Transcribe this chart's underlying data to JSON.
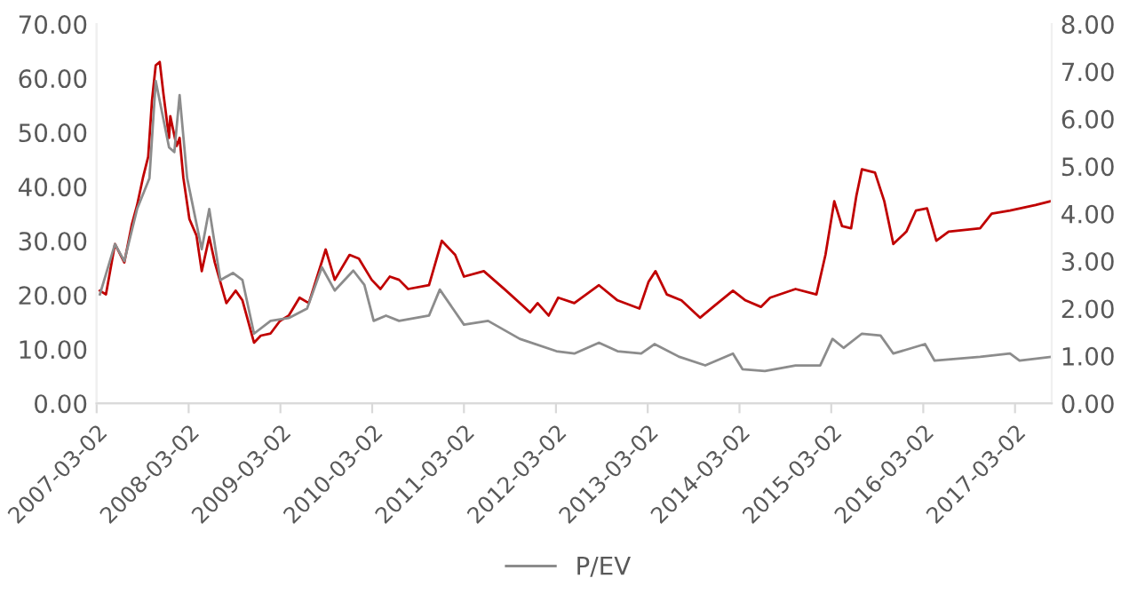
{
  "chart_data": {
    "type": "line",
    "legend": "bottom",
    "grid": false,
    "marker": "none",
    "line_style": "solid",
    "xlim": [
      "2007-03-02",
      "2017-07-26"
    ],
    "xticks": [
      {
        "value": "2007-03-02",
        "label": "2007-03-02"
      },
      {
        "value": "2008-03-02",
        "label": "2008-03-02"
      },
      {
        "value": "2009-03-02",
        "label": "2009-03-02"
      },
      {
        "value": "2010-03-02",
        "label": "2010-03-02"
      },
      {
        "value": "2011-03-02",
        "label": "2011-03-02"
      },
      {
        "value": "2012-03-02",
        "label": "2012-03-02"
      },
      {
        "value": "2013-03-02",
        "label": "2013-03-02"
      },
      {
        "value": "2014-03-02",
        "label": "2014-03-02"
      },
      {
        "value": "2015-03-02",
        "label": "2015-03-02"
      },
      {
        "value": "2016-03-02",
        "label": "2016-03-02"
      },
      {
        "value": "2017-03-02",
        "label": "2017-03-02"
      }
    ],
    "ylim": [
      0,
      70
    ],
    "yticks": [
      {
        "value": 0,
        "label": "0.00"
      },
      {
        "value": 10,
        "label": "10.00"
      },
      {
        "value": 20,
        "label": "20.00"
      },
      {
        "value": 30,
        "label": "30.00"
      },
      {
        "value": 40,
        "label": "40.00"
      },
      {
        "value": 50,
        "label": "50.00"
      },
      {
        "value": 60,
        "label": "60.00"
      },
      {
        "value": 70,
        "label": "70.00"
      }
    ],
    "y2lim": [
      0,
      8
    ],
    "y2ticks": [
      {
        "value": 0,
        "label": "0.00"
      },
      {
        "value": 1,
        "label": "1.00"
      },
      {
        "value": 2,
        "label": "2.00"
      },
      {
        "value": 3,
        "label": "3.00"
      },
      {
        "value": 4,
        "label": "4.00"
      },
      {
        "value": 5,
        "label": "5.00"
      },
      {
        "value": 6,
        "label": "6.00"
      },
      {
        "value": 7,
        "label": "7.00"
      },
      {
        "value": 8,
        "label": "8.00"
      }
    ],
    "series": [
      {
        "color": "#c00000",
        "x": [
          "2007-03-15",
          "2007-04-08",
          "2007-05-14",
          "2007-06-20",
          "2007-07-20",
          "2007-08-10",
          "2007-09-02",
          "2007-09-23",
          "2007-10-08",
          "2007-10-23",
          "2007-11-08",
          "2007-11-23",
          "2007-12-15",
          "2007-12-20",
          "2008-01-14",
          "2008-01-26",
          "2008-02-10",
          "2008-03-05",
          "2008-04-02",
          "2008-04-23",
          "2008-05-23",
          "2008-06-14",
          "2008-07-30",
          "2008-09-05",
          "2008-10-02",
          "2008-11-17",
          "2008-12-14",
          "2009-01-22",
          "2009-02-28",
          "2009-04-04",
          "2009-05-17",
          "2009-06-23",
          "2009-08-29",
          "2009-10-04",
          "2009-12-02",
          "2010-01-08",
          "2010-02-28",
          "2010-04-04",
          "2010-05-11",
          "2010-06-17",
          "2010-07-23",
          "2010-10-14",
          "2010-12-04",
          "2011-01-26",
          "2011-03-02",
          "2011-05-20",
          "2011-08-17",
          "2011-11-20",
          "2011-12-20",
          "2012-02-02",
          "2012-03-11",
          "2012-05-14",
          "2012-08-20",
          "2012-11-02",
          "2013-01-28",
          "2013-03-05",
          "2013-04-02",
          "2013-05-17",
          "2013-07-14",
          "2013-09-26",
          "2013-11-17",
          "2014-02-04",
          "2014-03-26",
          "2014-05-26",
          "2014-07-02",
          "2014-10-11",
          "2015-01-02",
          "2015-02-07",
          "2015-03-14",
          "2015-04-14",
          "2015-05-20",
          "2015-06-10",
          "2015-07-02",
          "2015-08-23",
          "2015-09-29",
          "2015-11-04",
          "2015-12-26",
          "2016-02-02",
          "2016-03-17",
          "2016-04-23",
          "2016-06-11",
          "2016-10-14",
          "2016-11-29",
          "2017-02-10",
          "2017-05-23",
          "2017-07-20"
        ],
        "values": [
          20.8,
          20.1,
          29.4,
          26,
          33,
          36.6,
          41.6,
          45.5,
          55.8,
          62.4,
          63,
          57,
          49,
          53,
          47.5,
          49,
          41.6,
          34,
          31,
          24.4,
          30.7,
          26,
          18.5,
          20.8,
          19,
          11.2,
          12.5,
          12.9,
          15.2,
          16.2,
          19.5,
          18.5,
          28.4,
          22.8,
          27.4,
          26.7,
          22.8,
          21.1,
          23.4,
          22.8,
          21.1,
          21.8,
          30,
          27.4,
          23.4,
          24.4,
          20.8,
          16.8,
          18.5,
          16.2,
          19.5,
          18.5,
          21.8,
          19,
          17.5,
          22.4,
          24.4,
          20.1,
          19,
          15.8,
          17.8,
          20.8,
          19,
          17.8,
          19.5,
          21.1,
          20.1,
          27.4,
          37.3,
          32.7,
          32.3,
          38.3,
          43.2,
          42.6,
          37.3,
          29.4,
          31.7,
          35.6,
          36,
          30,
          31.7,
          32.3,
          35,
          35.6,
          36.6,
          37.3
        ]
      },
      {
        "name": "P/EV",
        "color": "#8c8c8c",
        "axis": "y2",
        "x": [
          "2007-03-15",
          "2007-05-14",
          "2007-06-20",
          "2007-08-10",
          "2007-09-28",
          "2007-10-23",
          "2007-12-15",
          "2008-01-05",
          "2008-01-26",
          "2008-02-25",
          "2008-04-23",
          "2008-05-23",
          "2008-07-06",
          "2008-08-25",
          "2008-10-02",
          "2008-11-17",
          "2009-01-22",
          "2009-04-04",
          "2009-06-16",
          "2009-08-14",
          "2009-10-04",
          "2009-12-17",
          "2010-01-30",
          "2010-03-08",
          "2010-04-26",
          "2010-06-17",
          "2010-10-14",
          "2010-11-26",
          "2011-03-02",
          "2011-06-06",
          "2011-10-10",
          "2012-03-04",
          "2012-05-14",
          "2012-08-20",
          "2012-11-02",
          "2013-02-04",
          "2013-03-29",
          "2013-07-06",
          "2013-10-17",
          "2014-02-04",
          "2014-03-14",
          "2014-06-11",
          "2014-10-11",
          "2015-01-17",
          "2015-03-07",
          "2015-04-20",
          "2015-07-02",
          "2015-09-14",
          "2015-11-04",
          "2016-03-09",
          "2016-04-16",
          "2016-10-14",
          "2017-02-10",
          "2017-03-20",
          "2017-07-20"
        ],
        "values": [
          2.3,
          3.36,
          3.0,
          4.1,
          4.75,
          6.8,
          5.4,
          5.3,
          6.5,
          4.75,
          3.25,
          4.1,
          2.6,
          2.75,
          2.6,
          1.47,
          1.74,
          1.8,
          2.0,
          2.87,
          2.38,
          2.8,
          2.5,
          1.74,
          1.85,
          1.74,
          1.85,
          2.4,
          1.66,
          1.74,
          1.36,
          1.1,
          1.05,
          1.28,
          1.1,
          1.05,
          1.25,
          0.98,
          0.8,
          1.05,
          0.72,
          0.68,
          0.8,
          0.8,
          1.36,
          1.17,
          1.47,
          1.43,
          1.05,
          1.25,
          0.9,
          0.98,
          1.05,
          0.9,
          0.98
        ]
      }
    ]
  }
}
